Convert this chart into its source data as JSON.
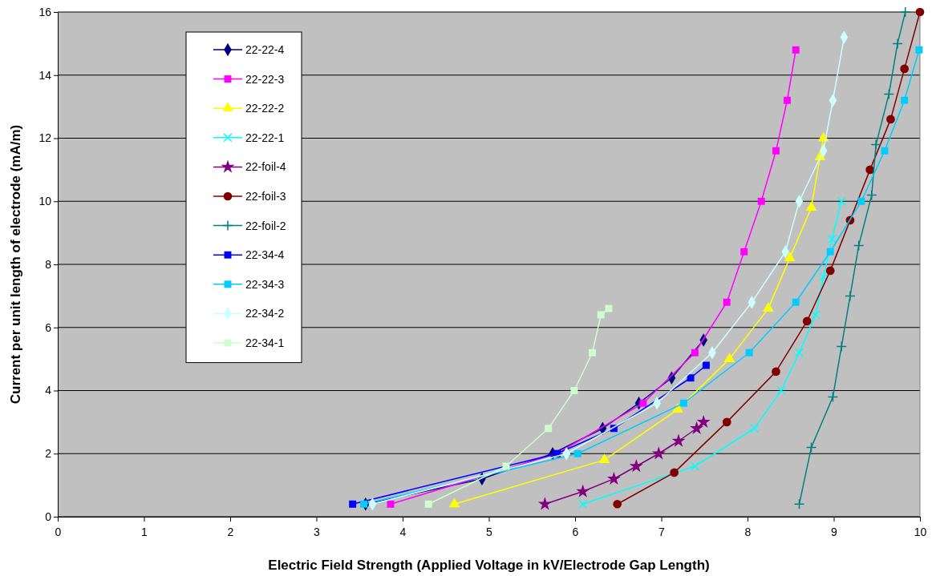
{
  "chart_data": {
    "type": "line",
    "xlabel": "Electric Field Strength (Applied Voltage in kV/Electrode Gap Length)",
    "ylabel": "Current per unit length of electrode (mA/m)",
    "xlim": [
      0,
      10
    ],
    "ylim": [
      0,
      16
    ],
    "xticks": [
      0,
      1,
      2,
      3,
      4,
      5,
      6,
      7,
      8,
      9,
      10
    ],
    "yticks": [
      0,
      2,
      4,
      6,
      8,
      10,
      12,
      14,
      16
    ],
    "grid": "y",
    "legend": "top left",
    "line_style": "solid",
    "series": [
      {
        "name": "22-22-4",
        "color": "#000080",
        "marker": "diamond",
        "x": [
          3.57,
          4.92,
          5.74,
          6.32,
          6.74,
          7.12,
          7.49
        ],
        "values": [
          0.4,
          1.2,
          2.0,
          2.8,
          3.6,
          4.4,
          5.6
        ]
      },
      {
        "name": "22-22-3",
        "color": "#ff00ff",
        "marker": "square",
        "x": [
          3.86,
          5.79,
          6.79,
          7.39,
          7.76,
          7.96,
          8.16,
          8.33,
          8.46,
          8.56
        ],
        "values": [
          0.4,
          2.0,
          3.6,
          5.2,
          6.8,
          8.4,
          10.0,
          11.6,
          13.2,
          14.8
        ]
      },
      {
        "name": "22-22-2",
        "color": "#ffff00",
        "marker": "triangle",
        "x": [
          4.6,
          6.34,
          7.19,
          7.79,
          8.24,
          8.49,
          8.74,
          8.84,
          8.88
        ],
        "values": [
          0.4,
          1.8,
          3.4,
          5.0,
          6.6,
          8.2,
          9.8,
          11.4,
          12.0
        ]
      },
      {
        "name": "22-22-1",
        "color": "#00ffff",
        "marker": "cross",
        "x": [
          6.09,
          7.39,
          8.08,
          8.39,
          8.6,
          8.79,
          8.88,
          8.98,
          9.09
        ],
        "values": [
          0.4,
          1.6,
          2.8,
          4.0,
          5.2,
          6.4,
          7.6,
          8.8,
          10.0
        ]
      },
      {
        "name": "22-foil-4",
        "color": "#800080",
        "marker": "star",
        "x": [
          5.65,
          6.09,
          6.45,
          6.71,
          6.97,
          7.2,
          7.41,
          7.49
        ],
        "values": [
          0.4,
          0.8,
          1.2,
          1.6,
          2.0,
          2.4,
          2.8,
          3.0
        ]
      },
      {
        "name": "22-foil-3",
        "color": "#800000",
        "marker": "circle",
        "x": [
          6.49,
          7.15,
          7.76,
          8.33,
          8.69,
          8.96,
          9.19,
          9.42,
          9.66,
          9.82,
          10.0
        ],
        "values": [
          0.4,
          1.4,
          3.0,
          4.6,
          6.2,
          7.8,
          9.4,
          11.0,
          12.6,
          14.2,
          16.0
        ]
      },
      {
        "name": "22-foil-2",
        "color": "#008080",
        "marker": "plus",
        "x": [
          8.6,
          8.74,
          8.99,
          9.09,
          9.19,
          9.29,
          9.44,
          9.49,
          9.64,
          9.74,
          9.83
        ],
        "values": [
          0.4,
          2.2,
          3.8,
          5.4,
          7.0,
          8.6,
          10.2,
          11.8,
          13.4,
          15.0,
          16.0
        ]
      },
      {
        "name": "22-34-4",
        "color": "#0000ff",
        "marker": "square",
        "x": [
          3.42,
          5.79,
          6.45,
          7.34,
          7.52
        ],
        "values": [
          0.4,
          2.0,
          2.8,
          4.4,
          4.8
        ]
      },
      {
        "name": "22-34-3",
        "color": "#00ccff",
        "marker": "square",
        "x": [
          3.55,
          6.03,
          7.26,
          8.02,
          8.56,
          8.96,
          9.32,
          9.59,
          9.82,
          9.99
        ],
        "values": [
          0.4,
          2.0,
          3.6,
          5.2,
          6.8,
          8.4,
          10.0,
          11.6,
          13.2,
          14.8
        ]
      },
      {
        "name": "22-34-2",
        "color": "#ccffff",
        "marker": "diamond",
        "x": [
          3.65,
          5.9,
          6.95,
          7.59,
          8.05,
          8.44,
          8.6,
          8.88,
          8.99,
          9.12
        ],
        "values": [
          0.4,
          2.0,
          3.6,
          5.2,
          6.8,
          8.4,
          10.0,
          11.6,
          13.2,
          15.2
        ]
      },
      {
        "name": "22-34-1",
        "color": "#ccffcc",
        "marker": "square",
        "x": [
          4.3,
          5.2,
          5.69,
          5.99,
          6.2,
          6.3,
          6.39
        ],
        "values": [
          0.4,
          1.6,
          2.8,
          4.0,
          5.2,
          6.4,
          6.6
        ]
      }
    ]
  }
}
